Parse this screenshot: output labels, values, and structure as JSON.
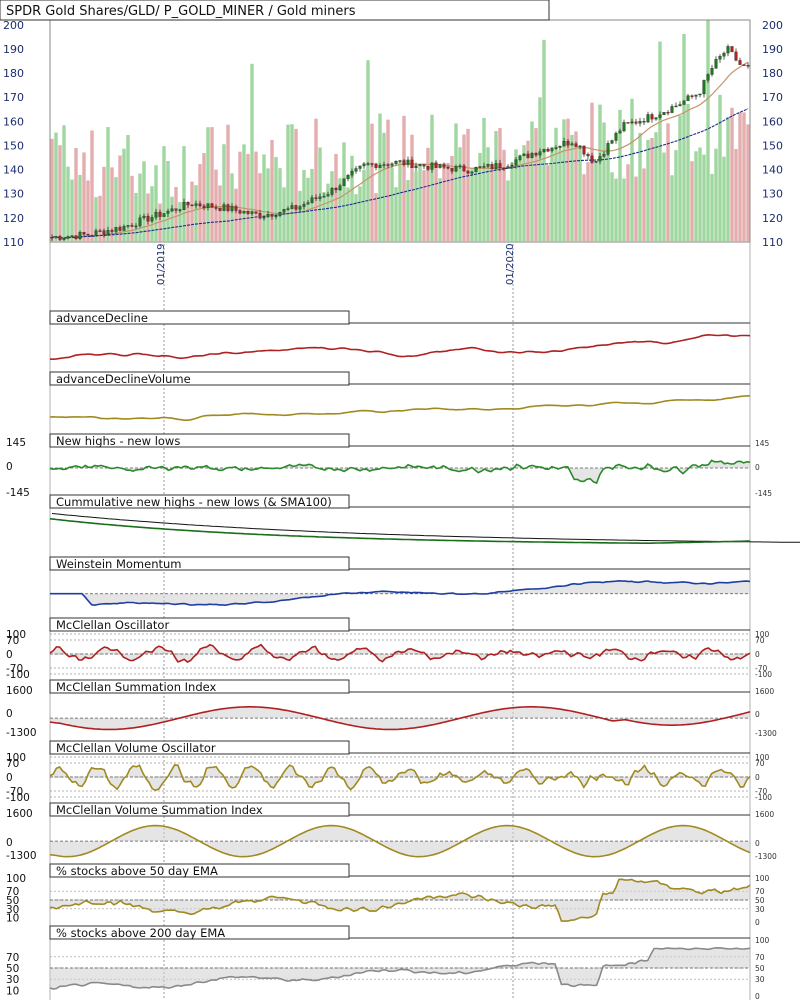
{
  "chart_data": {
    "type": "line",
    "title": "SPDR Gold Shares/GLD/ P_GOLD_MINER / Gold miners",
    "x_ticks": [
      "01/2019",
      "01/2020"
    ],
    "price": {
      "type": "candlestick",
      "ylim": [
        110,
        202
      ],
      "yticks": [
        110,
        120,
        130,
        140,
        150,
        160,
        170,
        180,
        190,
        200
      ],
      "sma_short": {
        "color": "#c8926a"
      },
      "sma_long": {
        "color": "#1b2e8c"
      },
      "volume": {
        "up_color": "#8fd08f",
        "down_color": "#e0a0a0"
      },
      "close_anchors": [
        [
          0,
          112
        ],
        [
          0.05,
          113
        ],
        [
          0.1,
          116
        ],
        [
          0.15,
          121
        ],
        [
          0.2,
          126
        ],
        [
          0.25,
          124
        ],
        [
          0.3,
          121
        ],
        [
          0.35,
          124
        ],
        [
          0.4,
          131
        ],
        [
          0.45,
          142
        ],
        [
          0.5,
          143
        ],
        [
          0.55,
          141
        ],
        [
          0.6,
          140
        ],
        [
          0.65,
          142
        ],
        [
          0.7,
          148
        ],
        [
          0.75,
          152
        ],
        [
          0.78,
          143
        ],
        [
          0.82,
          158
        ],
        [
          0.86,
          162
        ],
        [
          0.9,
          167
        ],
        [
          0.93,
          172
        ],
        [
          0.95,
          183
        ],
        [
          0.97,
          190
        ],
        [
          0.99,
          183
        ],
        [
          1,
          182
        ]
      ]
    },
    "panels": [
      {
        "key": "ad",
        "title": "advanceDecline",
        "color": "#b02020",
        "yticks_left": [],
        "yticks_right": []
      },
      {
        "key": "adv",
        "title": "advanceDeclineVolume",
        "color": "#a08a20",
        "yticks_left": [],
        "yticks_right": []
      },
      {
        "key": "nhnl",
        "title": "New highs - new lows",
        "color": "#2a8a2a",
        "yticks_left": [
          145,
          0,
          -145
        ],
        "yticks_right": [
          145,
          0,
          -145
        ]
      },
      {
        "key": "cnhnl",
        "title": "Cummulative new highs - new lows (& SMA100)",
        "color": "#1a6e1a",
        "yticks_left": [],
        "yticks_right": []
      },
      {
        "key": "wm",
        "title": "Weinstein Momentum",
        "color": "#1f3fa0",
        "yticks_left": [],
        "yticks_right": []
      },
      {
        "key": "mco",
        "title": "McClellan Oscillator",
        "color": "#b02020",
        "yticks_left": [
          100,
          70,
          0,
          -70,
          -100
        ],
        "yticks_right": [
          100,
          70,
          0,
          -70,
          -100
        ]
      },
      {
        "key": "msi",
        "title": "McClellan Summation Index",
        "color": "#b02020",
        "yticks_left": [
          1600,
          0,
          -1300
        ],
        "yticks_right": [
          1600,
          0,
          -1300
        ]
      },
      {
        "key": "mvo",
        "title": "McClellan Volume Oscillator",
        "color": "#a08a20",
        "yticks_left": [
          100,
          70,
          0,
          -70,
          -100
        ],
        "yticks_right": [
          100,
          70,
          0,
          -70,
          -100
        ]
      },
      {
        "key": "mvsi",
        "title": "McClellan Volume Summation Index",
        "color": "#a08a20",
        "yticks_left": [
          1600,
          0,
          -1300
        ],
        "yticks_right": [
          1600,
          0,
          -1300
        ]
      },
      {
        "key": "p50",
        "title": "% stocks above 50 day EMA",
        "color": "#a08a20",
        "yticks_left": [
          100,
          70,
          50,
          30,
          10
        ],
        "yticks_right": [
          100,
          70,
          50,
          30,
          0
        ]
      },
      {
        "key": "p200",
        "title": "% stocks above 200 day EMA",
        "color": "#8a8a8a",
        "yticks_left": [
          70,
          50,
          30,
          10
        ],
        "yticks_right": [
          100,
          70,
          50,
          30,
          0
        ]
      }
    ]
  }
}
